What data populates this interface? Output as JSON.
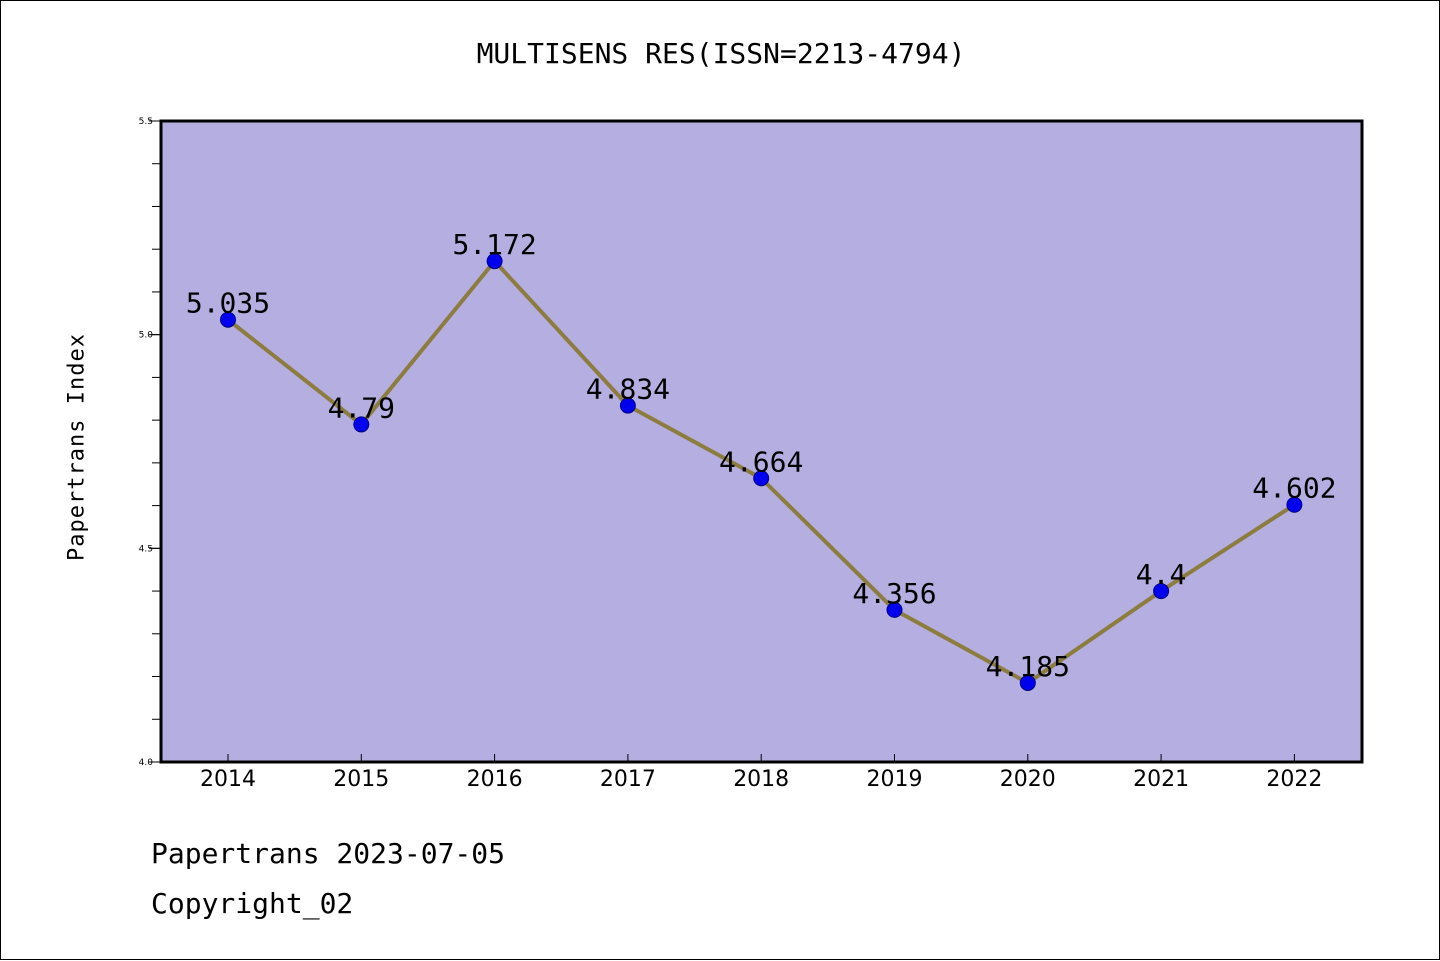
{
  "chart_data": {
    "type": "line",
    "title": "MULTISENS RES(ISSN=2213-4794)",
    "xlabel": "",
    "ylabel": "Papertrans Index",
    "categories": [
      "2014",
      "2015",
      "2016",
      "2017",
      "2018",
      "2019",
      "2020",
      "2021",
      "2022"
    ],
    "series": [
      {
        "values": [
          5.035,
          4.79,
          5.172,
          4.834,
          4.664,
          4.356,
          4.185,
          4.4,
          4.602
        ],
        "labels": [
          "5.035",
          "4.79",
          "5.172",
          "4.834",
          "4.664",
          "4.356",
          "4.185",
          "4.4",
          "4.602"
        ]
      }
    ],
    "ylim": [
      4.0,
      5.5
    ],
    "yticks": [
      "4.0",
      "4.5",
      "5.0",
      "5.5"
    ],
    "grid": false,
    "legend": "none",
    "colors": {
      "plot_background": "#b5aee1",
      "line": "#8c7d3e",
      "marker": "#0000ee",
      "marker_edge": "#000080"
    }
  },
  "footer": {
    "date_line": "Papertrans 2023-07-05",
    "copyright_line": "Copyright_02"
  }
}
